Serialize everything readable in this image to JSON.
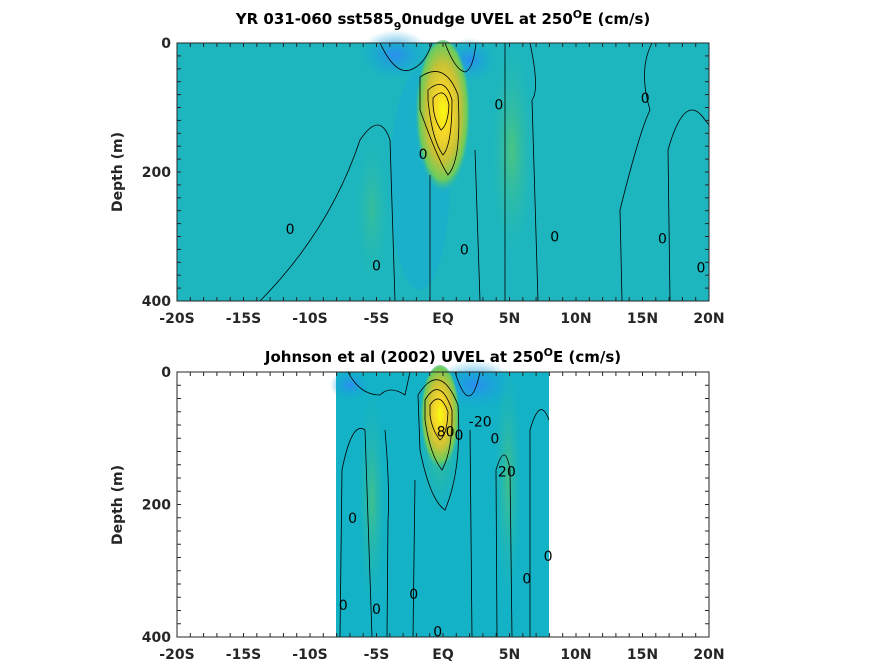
{
  "chart_data": [
    {
      "type": "heatmap",
      "title": "YR 031-060 sst585",
      "title_sub": "9",
      "title_rest": "0nudge UVEL at 250",
      "title_sup": "O",
      "title_end": "E (cm/s)",
      "xlabel": "",
      "ylabel": "Depth (m)",
      "xlim": [
        -20,
        20
      ],
      "ylim": [
        0,
        400
      ],
      "xticks": [
        -20,
        -15,
        -10,
        -5,
        0,
        5,
        10,
        15,
        20
      ],
      "xtick_labels": [
        "-20S",
        "-15S",
        "-10S",
        "-5S",
        "EQ",
        "5N",
        "10N",
        "15N",
        "20N"
      ],
      "yticks": [
        0,
        200,
        400
      ],
      "ytick_labels": [
        "0",
        "200",
        "400"
      ],
      "data_xrange": [
        -20,
        20
      ],
      "core": {
        "lat": 0,
        "depth": 100,
        "max": 100
      },
      "contour_labels": [
        {
          "text": "0",
          "lat": -11.5,
          "depth": 288
        },
        {
          "text": "0",
          "lat": -5,
          "depth": 345
        },
        {
          "text": "0",
          "lat": -1.5,
          "depth": 172
        },
        {
          "text": "0",
          "lat": 1.6,
          "depth": 320
        },
        {
          "text": "0",
          "lat": 4.2,
          "depth": 95
        },
        {
          "text": "0",
          "lat": 8.4,
          "depth": 300
        },
        {
          "text": "0",
          "lat": 15.2,
          "depth": 85
        },
        {
          "text": "0",
          "lat": 16.5,
          "depth": 303
        },
        {
          "text": "0",
          "lat": 19.4,
          "depth": 348
        }
      ]
    },
    {
      "type": "heatmap",
      "title": "Johnson et al (2002) UVEL at 250",
      "title_sup": "O",
      "title_end": "E (cm/s)",
      "xlabel": "",
      "ylabel": "Depth (m)",
      "xlim": [
        -20,
        20
      ],
      "ylim": [
        0,
        400
      ],
      "xticks": [
        -20,
        -15,
        -10,
        -5,
        0,
        5,
        10,
        15,
        20
      ],
      "xtick_labels": [
        "-20S",
        "-15S",
        "-10S",
        "-5S",
        "EQ",
        "5N",
        "10N",
        "15N",
        "20N"
      ],
      "yticks": [
        0,
        200,
        400
      ],
      "ytick_labels": [
        "0",
        "200",
        "400"
      ],
      "data_xrange": [
        -8,
        8
      ],
      "core": {
        "lat": 0,
        "depth": 70,
        "max": 100
      },
      "contour_labels": [
        {
          "text": "-20",
          "lat": 2.8,
          "depth": 75
        },
        {
          "text": "0",
          "lat": 1.2,
          "depth": 95
        },
        {
          "text": "80",
          "lat": 0.2,
          "depth": 90
        },
        {
          "text": "0",
          "lat": 3.9,
          "depth": 100
        },
        {
          "text": "20",
          "lat": 4.8,
          "depth": 150
        },
        {
          "text": "0",
          "lat": -6.8,
          "depth": 220
        },
        {
          "text": "0",
          "lat": -7.5,
          "depth": 352
        },
        {
          "text": "0",
          "lat": -5,
          "depth": 358
        },
        {
          "text": "0",
          "lat": -2.2,
          "depth": 335
        },
        {
          "text": "0",
          "lat": 6.3,
          "depth": 312
        },
        {
          "text": "0",
          "lat": 7.9,
          "depth": 278
        },
        {
          "text": "0",
          "lat": -0.4,
          "depth": 392
        }
      ]
    }
  ]
}
